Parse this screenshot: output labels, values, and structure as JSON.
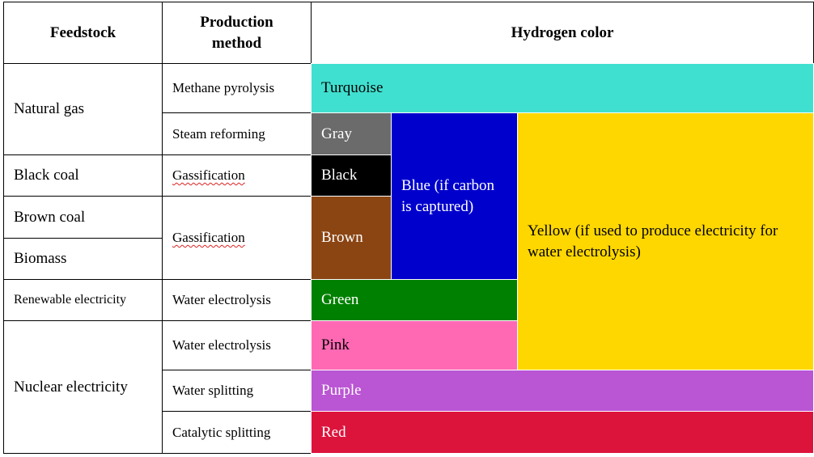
{
  "header": {
    "feedstock": "Feedstock",
    "method": "Production method",
    "color": "Hydrogen color"
  },
  "feedstocks": [
    "Natural gas",
    "Black coal",
    "Brown coal",
    "Biomass",
    "Renewable electricity",
    "Nuclear electricity"
  ],
  "methods": [
    "Methane pyrolysis",
    "Steam reforming",
    "Gassification",
    "Gassification",
    "Water electrolysis",
    "Water electrolysis",
    "Water splitting",
    "Catalytic splitting"
  ],
  "colors": [
    {
      "name": "Turquoise",
      "color": "#40e0d0"
    },
    {
      "name": "Gray",
      "color": "#6b6b6b"
    },
    {
      "name": "Black",
      "color": "#000000"
    },
    {
      "name": "Brown",
      "color": "#8b4513"
    },
    {
      "name": "Blue (if carbon is captured)",
      "color": "#0000cd"
    },
    {
      "name": "Yellow (if used to produce electricity for water electrolysis)",
      "color": "#ffd700"
    },
    {
      "name": "Green",
      "color": "#008000"
    },
    {
      "name": "Pink",
      "color": "#ff69b4"
    },
    {
      "name": "Purple",
      "color": "#ba55d3"
    },
    {
      "name": "Red",
      "color": "#dc143c"
    }
  ]
}
